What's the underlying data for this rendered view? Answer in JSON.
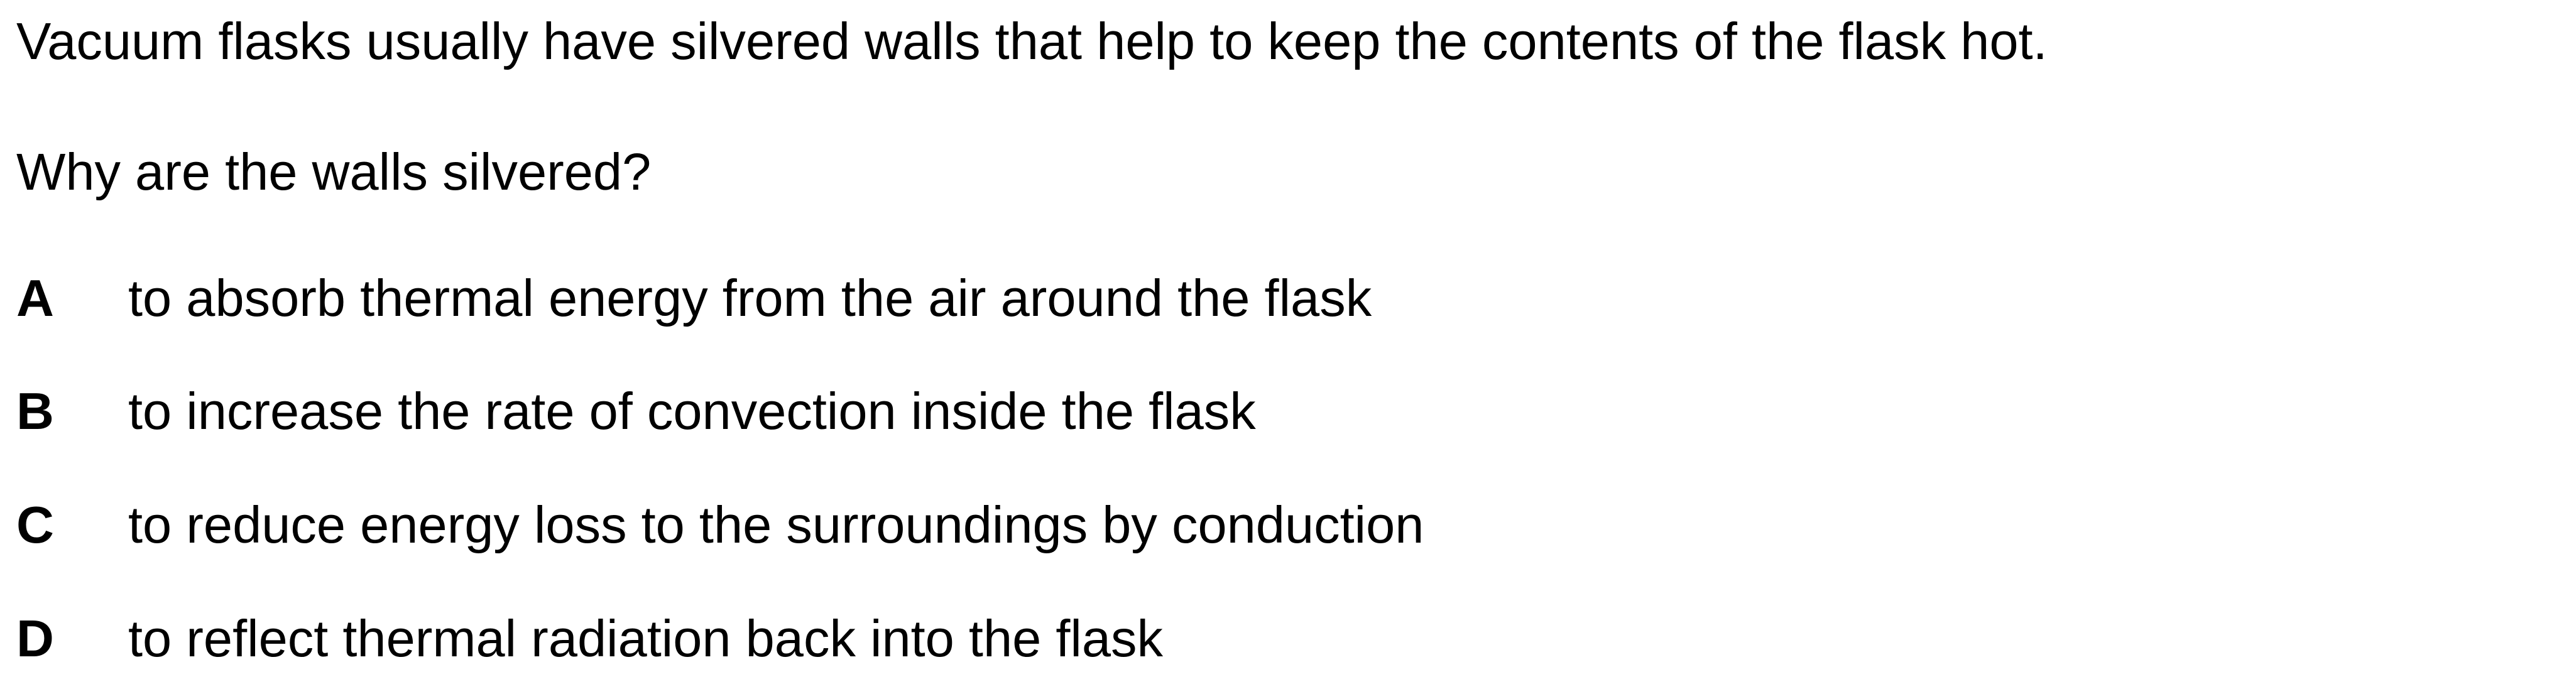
{
  "question": {
    "stem": "Vacuum flasks usually have silvered walls that help to keep the contents of the flask hot.",
    "prompt": "Why are the walls silvered?",
    "options": [
      {
        "letter": "A",
        "text": "to absorb thermal energy from the air around the flask"
      },
      {
        "letter": "B",
        "text": "to increase the rate of convection inside the flask"
      },
      {
        "letter": "C",
        "text": "to reduce energy loss to the surroundings by conduction"
      },
      {
        "letter": "D",
        "text": "to reflect thermal radiation back into the flask"
      }
    ]
  }
}
